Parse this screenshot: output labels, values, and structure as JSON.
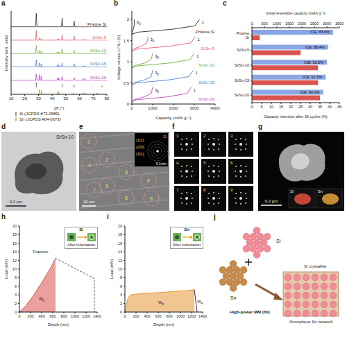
{
  "chart_data": [
    {
      "panel": "a",
      "type": "line",
      "x_label": "2θ (°)",
      "y_label": "Intensity (arb. units)",
      "xlim": [
        10,
        80
      ],
      "xticks": [
        10,
        20,
        30,
        40,
        50,
        60,
        70,
        80
      ],
      "ylim": [
        0,
        106
      ],
      "tick_labels": "x",
      "x": [
        10,
        27.9,
        28.4,
        28.9,
        30.3,
        30.6,
        30.9,
        31.7,
        32.0,
        32.3,
        43.6,
        43.9,
        44.2,
        44.6,
        44.9,
        45.2,
        46.8,
        47.3,
        47.8,
        55.6,
        56.1,
        56.6,
        62.3,
        62.5,
        62.8,
        63.5,
        63.8,
        64.1,
        68.6,
        69.1,
        69.6,
        76.0,
        76.4,
        76.8,
        80
      ],
      "series": [
        {
          "name": "Pristine Si",
          "color": "#222222",
          "values": [
            86,
            86,
            103,
            86,
            86,
            86,
            86,
            86,
            86,
            86,
            86,
            86,
            86,
            86,
            86,
            86,
            86,
            97,
            86,
            86,
            93,
            86,
            86,
            86,
            86,
            86,
            86,
            86,
            86,
            88,
            86,
            86,
            89,
            86,
            86
          ]
        },
        {
          "name": "Si/Sn-5",
          "color": "#e0606a",
          "values": [
            69,
            69,
            81,
            69,
            69,
            72,
            69,
            69,
            71,
            69,
            69,
            70.5,
            69,
            69,
            70.5,
            69,
            69,
            76,
            69,
            69,
            74,
            69,
            69,
            70,
            69,
            69,
            70,
            69,
            69,
            70,
            69,
            69,
            71,
            69,
            69
          ]
        },
        {
          "name": "Si/Sn-10",
          "color": "#6fae3a",
          "values": [
            52,
            52,
            62,
            52,
            52,
            56,
            52,
            52,
            55,
            52,
            52,
            54,
            52,
            52,
            54,
            52,
            52,
            58,
            52,
            52,
            56,
            52,
            52,
            53,
            52,
            52,
            53,
            52,
            52,
            53,
            52,
            52,
            54,
            52,
            52
          ]
        },
        {
          "name": "Si/Sn-15",
          "color": "#4a7fd0",
          "values": [
            35,
            35,
            44,
            35,
            35,
            40,
            35,
            35,
            39,
            35,
            35,
            37,
            35,
            35,
            37.5,
            35,
            35,
            40,
            35,
            35,
            39,
            35,
            35,
            36.5,
            35,
            35,
            36.5,
            35,
            35,
            36,
            35,
            35,
            37,
            35,
            35
          ]
        },
        {
          "name": "Si/Sn-20",
          "color": "#c040c0",
          "values": [
            18,
            18,
            26,
            18,
            18,
            25,
            18,
            18,
            23,
            18,
            18,
            21,
            18,
            18,
            21,
            18,
            18,
            23,
            18,
            18,
            21,
            18,
            18,
            20,
            18,
            18,
            20,
            18,
            18,
            19,
            18,
            18,
            20,
            18,
            18
          ]
        }
      ],
      "references": [
        {
          "name": "Si (JCPDS #73-0589)",
          "color": "#555555",
          "x": [
            28.4,
            47.3,
            56.1,
            69.1,
            76.4
          ],
          "base": 9,
          "values": [
            15,
            13,
            12,
            10,
            11
          ]
        },
        {
          "name": "Sn (JCPDS #04-0673)",
          "color": "#c68a3c",
          "x": [
            30.6,
            32.0,
            43.9,
            44.9,
            55.3,
            62.5,
            63.8,
            64.6,
            72.4,
            73.2,
            79.5
          ],
          "base": 0,
          "values": [
            6,
            5,
            3,
            3.5,
            1.5,
            2,
            2,
            1.5,
            1.5,
            1.5,
            1
          ]
        }
      ]
    },
    {
      "panel": "b",
      "type": "line",
      "x_label": "Capacity (mAh g⁻¹)",
      "y_label": "Voltage versus Li⁺/Li (V)",
      "xlim": [
        0,
        4000
      ],
      "xticks": [
        0,
        1000,
        2000,
        3000,
        4000
      ],
      "ylim": [
        0,
        2.2
      ],
      "yticks": [
        0,
        0.5,
        1,
        1.5,
        2
      ],
      "series": [
        {
          "name": "Pristine Si",
          "color": "#222222",
          "curves": [
            {
              "cycle": 1,
              "x": [
                0,
                260,
                1950,
                3020,
                3250
              ],
              "values": [
                1.65,
                1.7,
                1.77,
                1.85,
                2.0
              ]
            },
            {
              "cycle": 30,
              "x": [
                0,
                10,
                70,
                110,
                120
              ],
              "values": [
                1.65,
                1.7,
                1.77,
                1.85,
                2.0
              ]
            }
          ]
        },
        {
          "name": "Si/Sn-5",
          "color": "#e0606a",
          "curves": [
            {
              "cycle": 1,
              "x": [
                0,
                240,
                1830,
                2840,
                3050
              ],
              "values": [
                1.25,
                1.3,
                1.37,
                1.45,
                1.6
              ]
            },
            {
              "cycle": 30,
              "x": [
                0,
                60,
                470,
                725,
                780
              ],
              "values": [
                1.25,
                1.3,
                1.37,
                1.45,
                1.6
              ]
            }
          ]
        },
        {
          "name": "Si/Sn-10",
          "color": "#6fae3a",
          "curves": [
            {
              "cycle": 1,
              "x": [
                0,
                240,
                1800,
                2790,
                3000
              ],
              "values": [
                0.85,
                0.9,
                0.97,
                1.05,
                1.2
              ]
            },
            {
              "cycle": 30,
              "x": [
                0,
                80,
                600,
                930,
                1000
              ],
              "values": [
                0.85,
                0.9,
                0.97,
                1.05,
                1.2
              ]
            }
          ]
        },
        {
          "name": "Si/Sn-15",
          "color": "#4a7fd0",
          "curves": [
            {
              "cycle": 1,
              "x": [
                0,
                236,
                1770,
                2740,
                2950
              ],
              "values": [
                0.45,
                0.5,
                0.57,
                0.65,
                0.8
              ]
            },
            {
              "cycle": 30,
              "x": [
                0,
                80,
                600,
                930,
                1000
              ],
              "values": [
                0.45,
                0.5,
                0.57,
                0.65,
                0.8
              ]
            }
          ]
        },
        {
          "name": "Si/Sn-20",
          "color": "#c040c0",
          "curves": [
            {
              "cycle": 1,
              "x": [
                0,
                228,
                1710,
                2650,
                2850
              ],
              "values": [
                0.05,
                0.1,
                0.17,
                0.25,
                0.4
              ]
            },
            {
              "cycle": 30,
              "x": [
                0,
                80,
                600,
                930,
                1000
              ],
              "values": [
                0.05,
                0.1,
                0.17,
                0.25,
                0.4
              ]
            }
          ]
        }
      ]
    },
    {
      "panel": "c",
      "type": "bar",
      "orientation": "horizontal",
      "categories": [
        "Pristine Si",
        "Si/Sn-5",
        "Si/Sn-10",
        "Si/Sn-15",
        "Si/Sn-20"
      ],
      "y_label": "Capacity retention after 30 cycles (%)",
      "y2_label": "Initial reversible capacity (mAh g⁻¹)",
      "ylim": [
        0,
        45
      ],
      "yticks": [
        0,
        5,
        10,
        15,
        20,
        25,
        30,
        35,
        40,
        45
      ],
      "y2lim": [
        0,
        3500
      ],
      "y2ticks": [
        0,
        500,
        1000,
        1500,
        2000,
        2500,
        3000,
        3500
      ],
      "series": [
        {
          "color": "#8aa6e4",
          "axis": "y2",
          "values": [
            3250,
            3050,
            3000,
            2950,
            2850
          ],
          "annotations": [
            "ICE: 83.6%",
            "ICE: 88.4%",
            "ICE: 92.5%",
            "ICE: 91.5%",
            "ICE: 90.0%"
          ]
        },
        {
          "color": "#d9534f",
          "values": [
            4,
            25,
            34,
            34,
            35
          ]
        }
      ]
    },
    {
      "panel": "h",
      "type": "line",
      "x_label": "Depth (nm)",
      "y_label": "Load (mN)",
      "xlim": [
        0,
        1400
      ],
      "xticks": [
        0,
        200,
        400,
        600,
        800,
        1000,
        1200,
        1400
      ],
      "ylim": [
        0,
        20
      ],
      "yticks": [
        0,
        2,
        4,
        6,
        8,
        10,
        12,
        14,
        16,
        18,
        20
      ],
      "series": [
        {
          "name": "Si",
          "type": "area",
          "color": "#d9534f",
          "x": [
            0,
            100,
            250,
            400,
            550,
            650
          ],
          "values": [
            0,
            1.2,
            3.8,
            6.8,
            10,
            12.5
          ]
        },
        {
          "type": "line",
          "line_style": "dashed",
          "color": "#555555",
          "x": [
            650,
            1350,
            1350
          ],
          "values": [
            12.5,
            7.8,
            0
          ]
        }
      ],
      "annotations": [
        {
          "text": "Fracture",
          "x": 380,
          "y": 14
        },
        {
          "text": "We",
          "x": 400,
          "y": 3
        }
      ],
      "inset": {
        "caption": "After indentation"
      }
    },
    {
      "panel": "i",
      "type": "line",
      "x_label": "Depth (nm)",
      "y_label": "Load (mN)",
      "xlim": [
        0,
        1400
      ],
      "xticks": [
        0,
        200,
        400,
        600,
        800,
        1000,
        1200,
        1400
      ],
      "ylim": [
        0,
        20
      ],
      "yticks": [
        0,
        2,
        4,
        6,
        8,
        10,
        12,
        14,
        16,
        18,
        20
      ],
      "series": [
        {
          "name": "Sn",
          "type": "area",
          "color": "#e8973a",
          "x": [
            0,
            50,
            100,
            300,
            700,
            1100,
            1250
          ],
          "values": [
            0,
            3,
            4,
            4.3,
            4.6,
            5,
            5.2
          ]
        },
        {
          "type": "line",
          "color": "#333333",
          "x": [
            1250,
            1300
          ],
          "values": [
            5.2,
            0
          ]
        }
      ],
      "annotations": [
        {
          "text": "Wp",
          "x": 650,
          "y": 2.2
        },
        {
          "text": "We",
          "x": 1355,
          "y": 2.5
        }
      ],
      "inset": {
        "caption": "After indentation"
      }
    }
  ],
  "images": {
    "d": {
      "panel": "d",
      "label": "Si/Sn-10",
      "scale_bar": "0.2 μm"
    },
    "e": {
      "panel": "e",
      "scale_bar": "10 nm",
      "regions": [
        "1",
        "2",
        "3",
        "4",
        "5",
        "6",
        "7",
        "8",
        "9"
      ],
      "saed": {
        "rings": [
          "(111)",
          "(220)",
          "(311)"
        ],
        "phase": "Si",
        "scale_bar": "5 1/nm"
      }
    },
    "f": {
      "panel": "f",
      "tiles": [
        "1",
        "2",
        "3",
        "4",
        "5",
        "6",
        "7",
        "8",
        "9"
      ]
    },
    "g": {
      "panel": "g",
      "scale_bar": "0.2 μm",
      "maps": [
        {
          "name": "Si",
          "color": "#e0503c"
        },
        {
          "name": "Sn",
          "color": "#e6a23c"
        }
      ]
    },
    "j": {
      "panel": "j",
      "inputs": [
        {
          "name": "Si",
          "color": "#f08c96"
        },
        {
          "name": "Sn",
          "color": "#c98a4a"
        }
      ],
      "process": "High-power MM (6h)",
      "labels": [
        "Si crystallite",
        "Amorphous Sn network"
      ]
    }
  }
}
